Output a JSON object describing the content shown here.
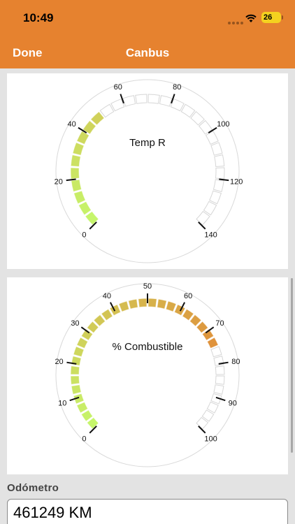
{
  "status": {
    "time": "10:49",
    "battery": "26"
  },
  "nav": {
    "done_label": "Done",
    "title": "Canbus"
  },
  "gauges": [
    {
      "label": "Temp R",
      "min": 0,
      "max": 140,
      "value": 50,
      "ticks": [
        0,
        20,
        40,
        60,
        80,
        100,
        120,
        140
      ],
      "segments": 28,
      "color_low": "#c6f56b",
      "color_high": "#e58a38"
    },
    {
      "label": "% Combustible",
      "min": 0,
      "max": 100,
      "value": 74,
      "ticks": [
        0,
        10,
        20,
        30,
        40,
        50,
        60,
        70,
        80,
        90,
        100
      ],
      "segments": 36,
      "color_low": "#c6f56b",
      "color_high": "#e8702b"
    }
  ],
  "odometer": {
    "label": "Odómetro",
    "value": "461249 KM"
  }
}
